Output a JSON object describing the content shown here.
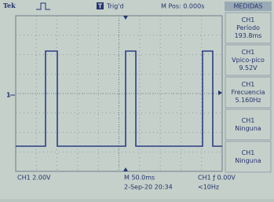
{
  "header": {
    "brand": "Tek",
    "trigger_icon": "T",
    "trigger_status": "Trig'd",
    "position": "M Pos: 0.000s"
  },
  "menu": {
    "title": "MEDIDAS",
    "items": [
      {
        "channel": "CH1",
        "label": "Período",
        "value": "193.8ms"
      },
      {
        "channel": "CH1",
        "label": "Vpico-pico",
        "value": "9.52V"
      },
      {
        "channel": "CH1",
        "label": "Frecuencia",
        "value": "5.160Hz"
      },
      {
        "channel": "CH1",
        "label": "Ninguna"
      },
      {
        "channel": "CH1",
        "label": "Ninguna"
      }
    ]
  },
  "screen": {
    "channel_marker": "1"
  },
  "footer": {
    "channel_scale": "CH1  2.00V",
    "time_scale": "M 50.0ms",
    "trigger": "CH1 ƒ 0.00V",
    "date": "2-Sep-20 20:34",
    "frequency": "<10Hz"
  }
}
